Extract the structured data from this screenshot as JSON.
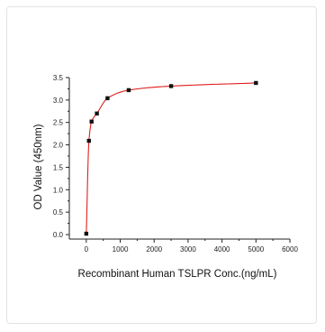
{
  "chart_data": {
    "type": "scatter",
    "title": "",
    "xlabel": "Recombinant Human TSLPR Conc.(ng/mL)",
    "ylabel": "OD Value (450nm)",
    "xlim": [
      -500,
      6000
    ],
    "ylim": [
      -0.1,
      3.5
    ],
    "x_ticks": [
      0,
      1000,
      2000,
      3000,
      4000,
      5000,
      6000
    ],
    "y_ticks": [
      0.0,
      0.5,
      1.0,
      1.5,
      2.0,
      2.5,
      3.0,
      3.5
    ],
    "x_tick_labels": [
      "0",
      "1000",
      "2000",
      "3000",
      "4000",
      "5000",
      "6000"
    ],
    "y_tick_labels": [
      "0.0",
      "0.5",
      "1.0",
      "1.5",
      "2.0",
      "2.5",
      "3.0",
      "3.5"
    ],
    "grid": false,
    "legend": "none",
    "series": [
      {
        "x": [
          0,
          78,
          156,
          312,
          625,
          1250,
          2500,
          5000
        ],
        "y": [
          0.02,
          2.09,
          2.52,
          2.7,
          3.04,
          3.22,
          3.31,
          3.38
        ],
        "marker": "square",
        "marker_color": "#111111",
        "fit_line_color": "#e02020"
      }
    ]
  }
}
